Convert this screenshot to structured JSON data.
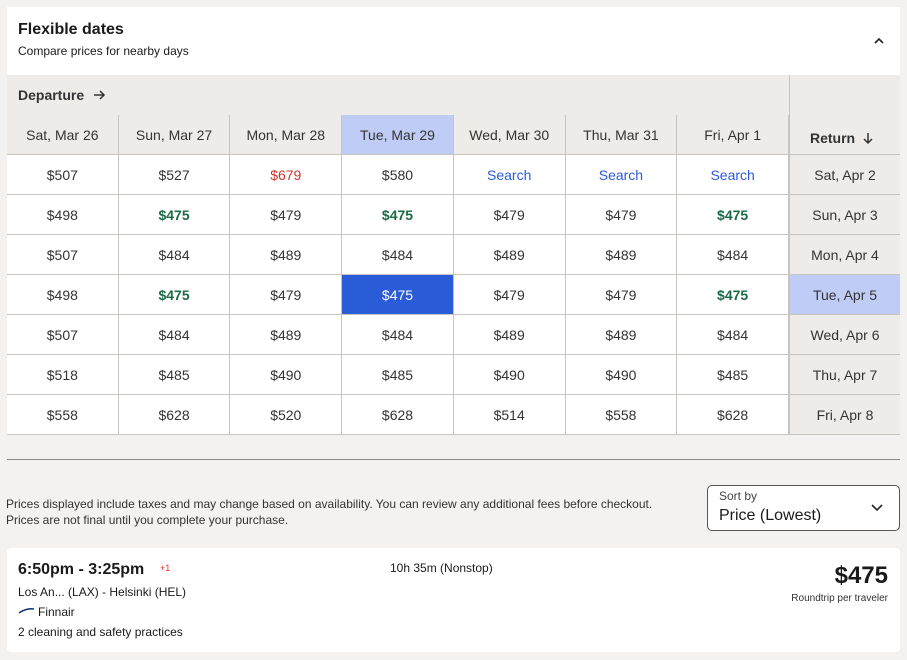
{
  "header": {
    "title": "Flexible dates",
    "subtitle": "Compare prices for nearby days"
  },
  "grid": {
    "departure_label": "Departure",
    "return_label": "Return",
    "departure_dates": [
      "Sat, Mar 26",
      "Sun, Mar 27",
      "Mon, Mar 28",
      "Tue, Mar 29",
      "Wed, Mar 30",
      "Thu, Mar 31",
      "Fri, Apr 1"
    ],
    "return_dates": [
      "Sat, Apr 2",
      "Sun, Apr 3",
      "Mon, Apr 4",
      "Tue, Apr 5",
      "Wed, Apr 6",
      "Thu, Apr 7",
      "Fri, Apr 8"
    ],
    "rows": [
      [
        "$507",
        "$527",
        "$679",
        "$580",
        "Search",
        "Search",
        "Search"
      ],
      [
        "$498",
        "$475",
        "$479",
        "$475",
        "$479",
        "$479",
        "$475"
      ],
      [
        "$507",
        "$484",
        "$489",
        "$484",
        "$489",
        "$489",
        "$484"
      ],
      [
        "$498",
        "$475",
        "$479",
        "$475",
        "$479",
        "$479",
        "$475"
      ],
      [
        "$507",
        "$484",
        "$489",
        "$484",
        "$489",
        "$489",
        "$484"
      ],
      [
        "$518",
        "$485",
        "$490",
        "$485",
        "$490",
        "$490",
        "$485"
      ],
      [
        "$558",
        "$628",
        "$520",
        "$628",
        "$514",
        "$558",
        "$628"
      ]
    ]
  },
  "disclaimer": [
    "Prices displayed include taxes and may change based on availability. You can review any additional fees before checkout.",
    "Prices are not final until you complete your purchase."
  ],
  "sort": {
    "label": "Sort by",
    "value": "Price (Lowest)"
  },
  "flight": {
    "times": "6:50pm - 3:25pm",
    "day_offset": "+1",
    "duration": "10h 35m (Nonstop)",
    "route": "Los An... (LAX) - Helsinki (HEL)",
    "airline": "Finnair",
    "safety": "2 cleaning and safety practices",
    "price": "$475",
    "price_note": "Roundtrip per traveler"
  }
}
